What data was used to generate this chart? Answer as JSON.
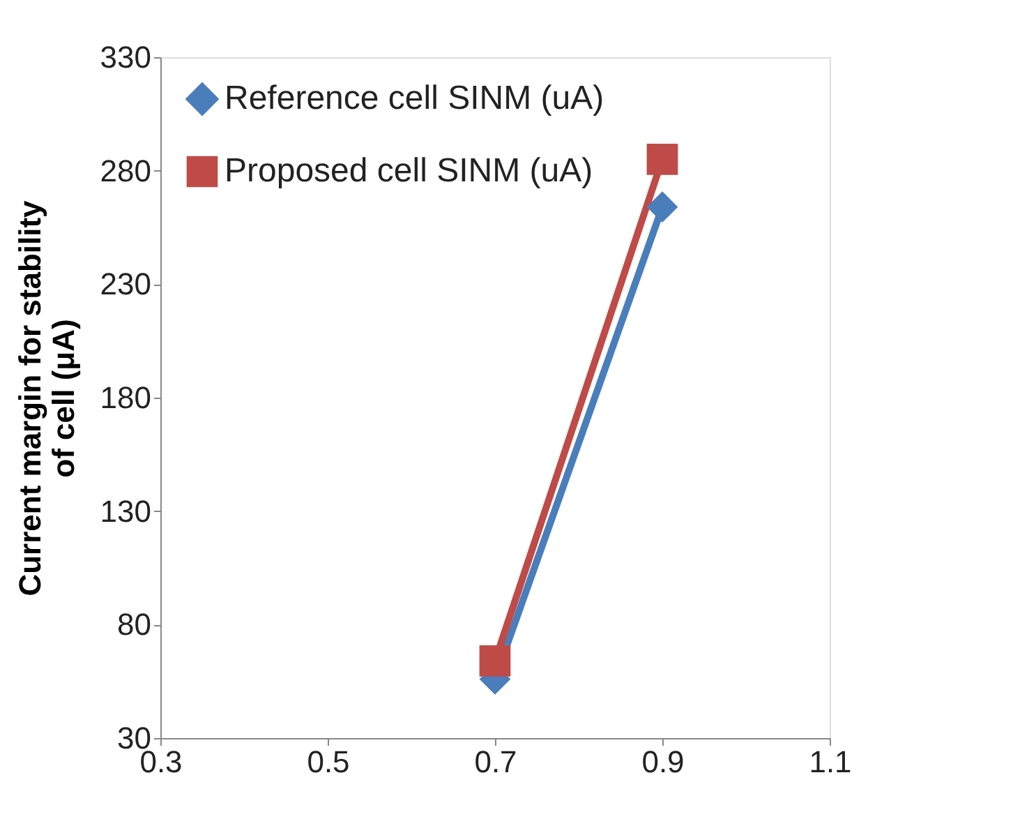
{
  "chart_data": {
    "type": "line",
    "ylabel": "Current margin for stability of cell (μA)",
    "x": [
      0.7,
      0.9
    ],
    "series": [
      {
        "name": "Reference cell SINM (uA)",
        "color": "#4a7ebb",
        "marker": "diamond",
        "line_style": "solid",
        "values": [
          56,
          264
        ]
      },
      {
        "name": "Proposed cell SINM (uA)",
        "color": "#be4b48",
        "marker": "square",
        "line_style": "solid",
        "values": [
          64,
          285
        ]
      }
    ],
    "xlim": [
      0.3,
      1.1
    ],
    "xticks": [
      0.3,
      0.5,
      0.7,
      0.9,
      1.1
    ],
    "ylim": [
      30,
      330
    ],
    "yticks": [
      30,
      80,
      130,
      180,
      230,
      280,
      330
    ],
    "grid": false,
    "legend": "top left"
  }
}
